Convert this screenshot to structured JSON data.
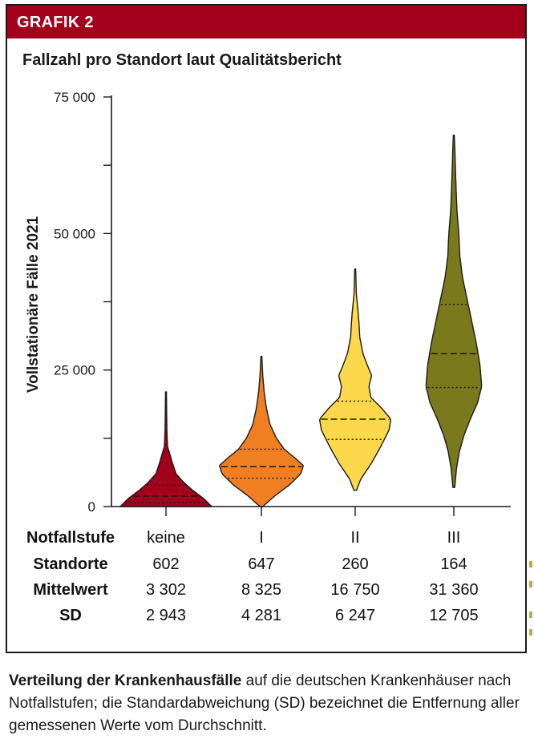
{
  "banner": {
    "label": "GRAFIK 2"
  },
  "chart_data": {
    "type": "violin",
    "title": "Fallzahl pro Standort laut Qualitätsbericht",
    "ylabel": "Vollstationäre Fälle 2021",
    "xlabel": "Notfallstufe",
    "ylim": [
      0,
      75000
    ],
    "yticks": [
      0,
      25000,
      50000,
      75000
    ],
    "ytick_labels": [
      "0",
      "25 000",
      "50 000",
      "75 000"
    ],
    "categories": [
      "keine",
      "I",
      "II",
      "III"
    ],
    "series": [
      {
        "name": "keine",
        "color": "#a3001b",
        "min": 0,
        "max": 21000,
        "q1": 700,
        "median": 1900,
        "q3": 3900,
        "profile": [
          [
            0,
            1.0
          ],
          [
            1500,
            0.82
          ],
          [
            3000,
            0.58
          ],
          [
            4500,
            0.38
          ],
          [
            6000,
            0.22
          ],
          [
            8000,
            0.14
          ],
          [
            9500,
            0.09
          ],
          [
            11000,
            0.035
          ],
          [
            14000,
            0.02
          ],
          [
            18000,
            0.014
          ],
          [
            21000,
            0.01
          ]
        ]
      },
      {
        "name": "I",
        "color": "#f07f22",
        "min": 0,
        "max": 27500,
        "q1": 5200,
        "median": 7300,
        "q3": 10500,
        "profile": [
          [
            0,
            0.03
          ],
          [
            2000,
            0.3
          ],
          [
            4000,
            0.62
          ],
          [
            6000,
            0.86
          ],
          [
            7500,
            0.92
          ],
          [
            9000,
            0.72
          ],
          [
            10500,
            0.5
          ],
          [
            12500,
            0.33
          ],
          [
            15000,
            0.19
          ],
          [
            18000,
            0.11
          ],
          [
            21000,
            0.06
          ],
          [
            24000,
            0.03
          ],
          [
            27500,
            0.01
          ]
        ]
      },
      {
        "name": "II",
        "color": "#fcd84a",
        "min": 3000,
        "max": 43500,
        "q1": 12300,
        "median": 16000,
        "q3": 19300,
        "profile": [
          [
            3000,
            0.03
          ],
          [
            5000,
            0.12
          ],
          [
            8000,
            0.36
          ],
          [
            11000,
            0.56
          ],
          [
            14000,
            0.74
          ],
          [
            16000,
            0.78
          ],
          [
            18000,
            0.58
          ],
          [
            20000,
            0.34
          ],
          [
            22000,
            0.3
          ],
          [
            24000,
            0.36
          ],
          [
            26000,
            0.26
          ],
          [
            28000,
            0.17
          ],
          [
            31000,
            0.1
          ],
          [
            34000,
            0.08
          ],
          [
            36000,
            0.06
          ],
          [
            39000,
            0.025
          ],
          [
            43500,
            0.01
          ]
        ]
      },
      {
        "name": "III",
        "color": "#7a7a1c",
        "min": 3500,
        "max": 68000,
        "q1": 21800,
        "median": 28000,
        "q3": 37000,
        "profile": [
          [
            3500,
            0.02
          ],
          [
            7000,
            0.06
          ],
          [
            10000,
            0.12
          ],
          [
            13000,
            0.22
          ],
          [
            16000,
            0.36
          ],
          [
            19000,
            0.52
          ],
          [
            22000,
            0.61
          ],
          [
            26000,
            0.57
          ],
          [
            30000,
            0.49
          ],
          [
            34000,
            0.39
          ],
          [
            38000,
            0.29
          ],
          [
            42000,
            0.19
          ],
          [
            46000,
            0.13
          ],
          [
            50000,
            0.11
          ],
          [
            54000,
            0.07
          ],
          [
            58000,
            0.05
          ],
          [
            62000,
            0.035
          ],
          [
            66000,
            0.02
          ],
          [
            68000,
            0.01
          ]
        ]
      }
    ],
    "table": {
      "row_headers": [
        "Notfallstufe",
        "Standorte",
        "Mittelwert",
        "SD"
      ],
      "columns": [
        [
          "keine",
          "602",
          "3 302",
          "2 943"
        ],
        [
          "I",
          "647",
          "8 325",
          "4 281"
        ],
        [
          "II",
          "260",
          "16 750",
          "6 247"
        ],
        [
          "III",
          "164",
          "31 360",
          "12 705"
        ]
      ]
    }
  },
  "caption": {
    "bold": "Verteilung der Krankenhausfälle",
    "rest": " auf die deutschen Krankenhäuser nach Notfallstufen; die Standardabweichung (SD) bezeichnet die Entfernung aller gemessenen Werte vom Durchschnitt."
  }
}
